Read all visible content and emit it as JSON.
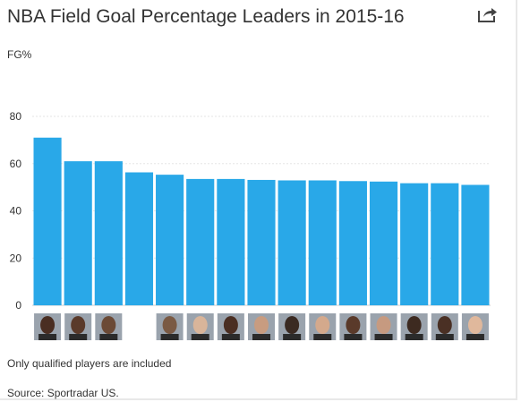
{
  "title": "NBA Field Goal Percentage Leaders in 2015-16",
  "unit_label": "FG%",
  "note": "Only qualified players are included",
  "source": "Source: Sportradar US.",
  "share_icon": "share-arrow-icon",
  "colors": {
    "bar": "#29a8e8",
    "grid": "#e6e6e6",
    "axis": "#cccccc",
    "text": "#333333"
  },
  "chart_data": {
    "type": "bar",
    "title": "NBA Field Goal Percentage Leaders in 2015-16",
    "ylabel": "FG%",
    "xlabel": "",
    "ylim": [
      0,
      80
    ],
    "yticks": [
      0,
      20,
      40,
      60,
      80
    ],
    "grid": true,
    "categories": [
      "Player 1",
      "Player 2",
      "Player 3",
      "Player 4",
      "Player 5",
      "Player 6",
      "Player 7",
      "Player 8",
      "Player 9",
      "Player 10",
      "Player 11",
      "Player 12",
      "Player 13",
      "Player 14",
      "Player 15"
    ],
    "category_display": "player headshot images (no text labels)",
    "values": [
      71.0,
      61.0,
      61.0,
      56.3,
      55.3,
      53.5,
      53.5,
      53.1,
      52.9,
      52.9,
      52.6,
      52.4,
      51.7,
      51.7,
      51.0
    ]
  }
}
